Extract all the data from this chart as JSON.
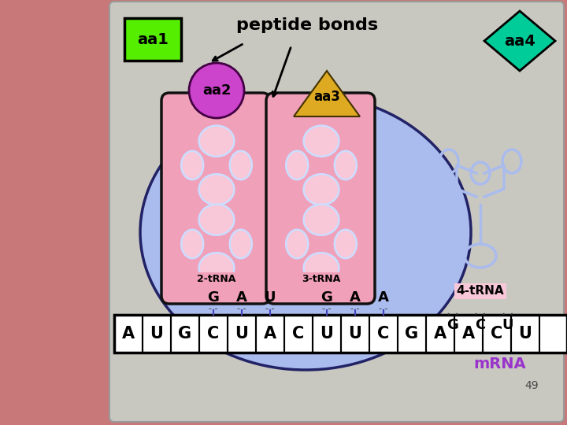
{
  "bg_color": "#c87878",
  "panel_bg": "#c8c8c0",
  "ribosome_color": "#aabbee",
  "ribosome_edge": "#222266",
  "slot_color": "#f0a0b8",
  "slot_edge": "#111111",
  "slot_inner_color": "#f8c8d8",
  "slot_inner_edge": "#ccddff",
  "aa1_color": "#55ee00",
  "aa1_edge": "#000000",
  "aa2_color": "#cc44cc",
  "aa2_edge": "#440044",
  "aa3_color": "#ddaa22",
  "aa3_edge": "#443300",
  "aa4_color": "#00cc99",
  "aa4_edge": "#000000",
  "arrow_color": "#000000",
  "trna4_line_color": "#aabbee",
  "codon_dot_color": "#333333",
  "codon_line_color": "#4444bb",
  "mrna_bg": "#ffffff",
  "mrna_edge": "#000000",
  "mrna_text_color": "#000000",
  "mrna_label_color": "#9933cc",
  "pagenum_color": "#444444",
  "title": "peptide bonds",
  "aa1_label": "aa1",
  "aa2_label": "aa2",
  "aa3_label": "aa3",
  "aa4_label": "aa4",
  "trna2_label": "2-tRNA",
  "trna3_label": "3-tRNA",
  "trna4_label": "4-tRNA",
  "codon2": [
    "G",
    "A",
    "U"
  ],
  "codon3": [
    "G",
    "A",
    "A"
  ],
  "codon4": [
    "G",
    "C",
    "U"
  ],
  "mrna_seq": [
    "A",
    "U",
    "G",
    "C",
    "U",
    "A",
    "C",
    "U",
    "U",
    "C",
    "G",
    "A",
    "A",
    "C",
    "U"
  ],
  "mrna_label": "mRNA",
  "page_num": "49"
}
